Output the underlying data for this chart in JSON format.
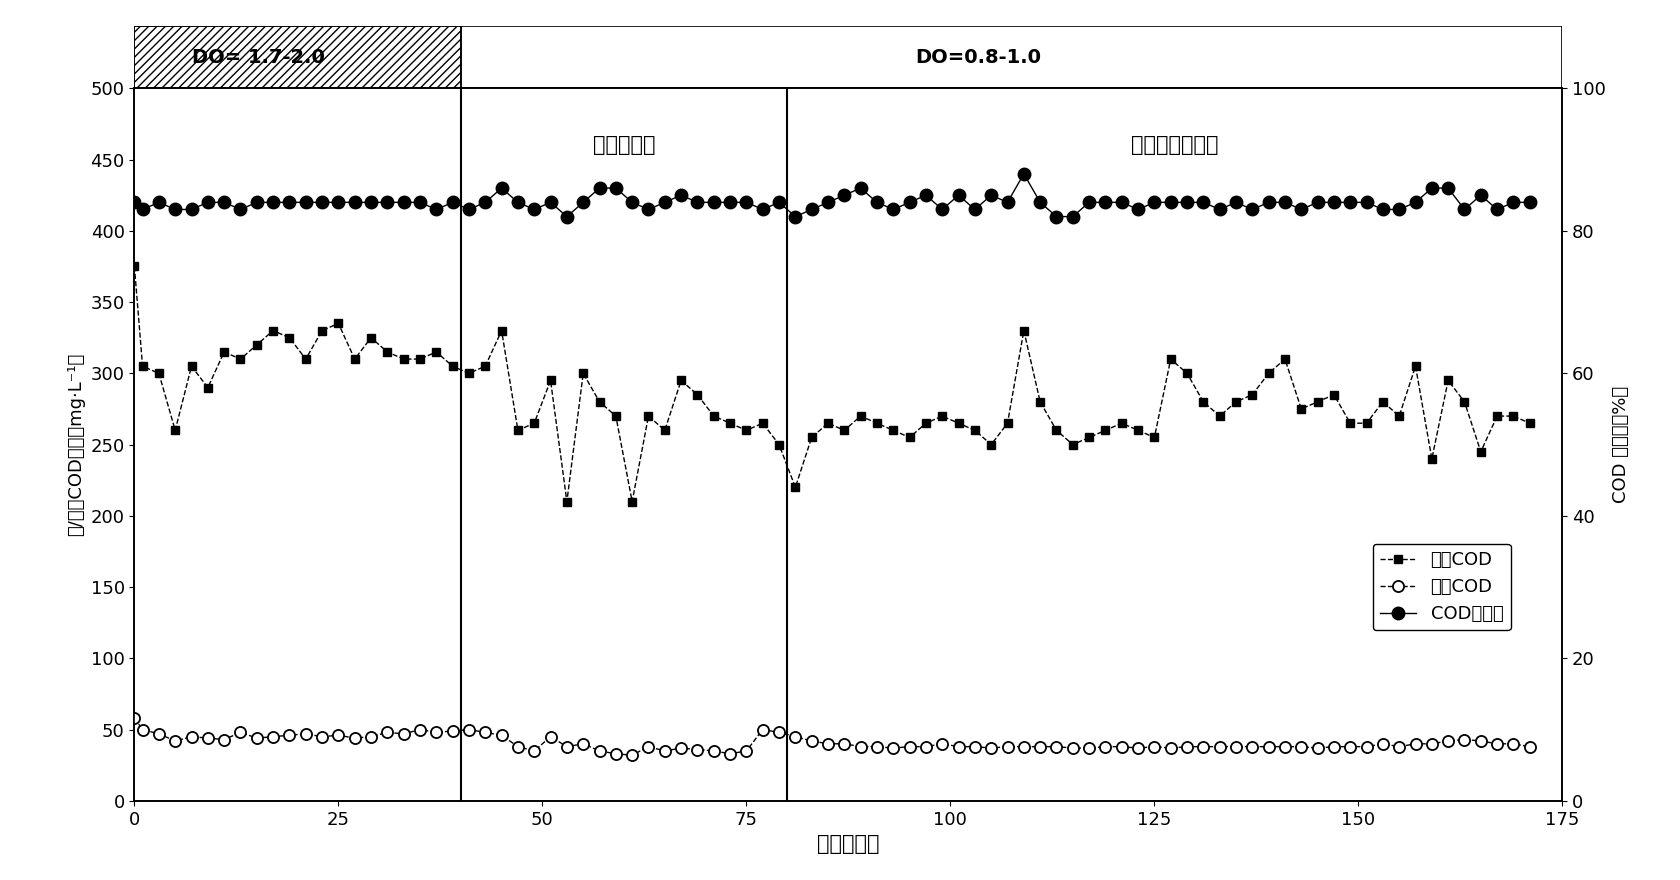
{
  "xlabel": "时间（天）",
  "ylabel_left": "进/出水COD浓度（mg·L⁻¹）",
  "ylabel_right": "COD 去除率（%）",
  "xlim": [
    0,
    175
  ],
  "ylim_left": [
    0,
    500
  ],
  "ylim_right": [
    0,
    100
  ],
  "yticks_left": [
    0,
    50,
    100,
    150,
    200,
    250,
    300,
    350,
    400,
    450,
    500
  ],
  "yticks_right": [
    0,
    20,
    40,
    60,
    80,
    100
  ],
  "xticks": [
    0,
    25,
    50,
    75,
    100,
    125,
    150,
    175
  ],
  "vline1": 40,
  "vline2": 80,
  "do_label1": "DO= 1.7-2.0",
  "do_label2": "DO=0.8-1.0",
  "phase1_label": "微膨胀实现",
  "phase2_label": "微膨胀稳定维持",
  "legend_labels": [
    "进水COD",
    "出水COD",
    "COD去除率"
  ],
  "influent_x": [
    0,
    1,
    3,
    5,
    7,
    9,
    11,
    13,
    15,
    17,
    19,
    21,
    23,
    25,
    27,
    29,
    31,
    33,
    35,
    37,
    39,
    41,
    43,
    45,
    47,
    49,
    51,
    53,
    55,
    57,
    59,
    61,
    63,
    65,
    67,
    69,
    71,
    73,
    75,
    77,
    79,
    81,
    83,
    85,
    87,
    89,
    91,
    93,
    95,
    97,
    99,
    101,
    103,
    105,
    107,
    109,
    111,
    113,
    115,
    117,
    119,
    121,
    123,
    125,
    127,
    129,
    131,
    133,
    135,
    137,
    139,
    141,
    143,
    145,
    147,
    149,
    151,
    153,
    155,
    157,
    159,
    161,
    163,
    165,
    167,
    169,
    171
  ],
  "influent_y": [
    375,
    305,
    300,
    260,
    305,
    290,
    315,
    310,
    320,
    330,
    325,
    310,
    330,
    335,
    310,
    325,
    315,
    310,
    310,
    315,
    305,
    300,
    305,
    330,
    260,
    265,
    295,
    210,
    300,
    280,
    270,
    210,
    270,
    260,
    295,
    285,
    270,
    265,
    260,
    265,
    250,
    220,
    255,
    265,
    260,
    270,
    265,
    260,
    255,
    265,
    270,
    265,
    260,
    250,
    265,
    330,
    280,
    260,
    250,
    255,
    260,
    265,
    260,
    255,
    310,
    300,
    280,
    270,
    280,
    285,
    300,
    310,
    275,
    280,
    285,
    265,
    265,
    280,
    270,
    305,
    240,
    295,
    280,
    245,
    270,
    270,
    265
  ],
  "effluent_x": [
    0,
    1,
    3,
    5,
    7,
    9,
    11,
    13,
    15,
    17,
    19,
    21,
    23,
    25,
    27,
    29,
    31,
    33,
    35,
    37,
    39,
    41,
    43,
    45,
    47,
    49,
    51,
    53,
    55,
    57,
    59,
    61,
    63,
    65,
    67,
    69,
    71,
    73,
    75,
    77,
    79,
    81,
    83,
    85,
    87,
    89,
    91,
    93,
    95,
    97,
    99,
    101,
    103,
    105,
    107,
    109,
    111,
    113,
    115,
    117,
    119,
    121,
    123,
    125,
    127,
    129,
    131,
    133,
    135,
    137,
    139,
    141,
    143,
    145,
    147,
    149,
    151,
    153,
    155,
    157,
    159,
    161,
    163,
    165,
    167,
    169,
    171
  ],
  "effluent_y": [
    58,
    50,
    47,
    42,
    45,
    44,
    43,
    48,
    44,
    45,
    46,
    47,
    45,
    46,
    44,
    45,
    48,
    47,
    50,
    48,
    49,
    50,
    48,
    46,
    38,
    35,
    45,
    38,
    40,
    35,
    33,
    32,
    38,
    35,
    37,
    36,
    35,
    33,
    35,
    50,
    48,
    45,
    42,
    40,
    40,
    38,
    38,
    37,
    38,
    38,
    40,
    38,
    38,
    37,
    38,
    38,
    38,
    38,
    37,
    37,
    38,
    38,
    37,
    38,
    37,
    38,
    38,
    38,
    38,
    38,
    38,
    38,
    38,
    37,
    38,
    38,
    38,
    40,
    38,
    40,
    40,
    42,
    43,
    42,
    40,
    40,
    38
  ],
  "removal_x": [
    0,
    1,
    3,
    5,
    7,
    9,
    11,
    13,
    15,
    17,
    19,
    21,
    23,
    25,
    27,
    29,
    31,
    33,
    35,
    37,
    39,
    41,
    43,
    45,
    47,
    49,
    51,
    53,
    55,
    57,
    59,
    61,
    63,
    65,
    67,
    69,
    71,
    73,
    75,
    77,
    79,
    81,
    83,
    85,
    87,
    89,
    91,
    93,
    95,
    97,
    99,
    101,
    103,
    105,
    107,
    109,
    111,
    113,
    115,
    117,
    119,
    121,
    123,
    125,
    127,
    129,
    131,
    133,
    135,
    137,
    139,
    141,
    143,
    145,
    147,
    149,
    151,
    153,
    155,
    157,
    159,
    161,
    163,
    165,
    167,
    169,
    171
  ],
  "removal_y": [
    84,
    83,
    84,
    83,
    83,
    84,
    84,
    83,
    84,
    84,
    84,
    84,
    84,
    84,
    84,
    84,
    84,
    84,
    84,
    83,
    84,
    83,
    84,
    86,
    84,
    83,
    84,
    82,
    84,
    86,
    86,
    84,
    83,
    84,
    85,
    84,
    84,
    84,
    84,
    83,
    84,
    82,
    83,
    84,
    85,
    86,
    84,
    83,
    84,
    85,
    83,
    85,
    83,
    85,
    84,
    88,
    84,
    82,
    82,
    84,
    84,
    84,
    83,
    84,
    84,
    84,
    84,
    83,
    84,
    83,
    84,
    84,
    83,
    84,
    84,
    84,
    84,
    83,
    83,
    84,
    86,
    86,
    83,
    85,
    83,
    84,
    84
  ]
}
